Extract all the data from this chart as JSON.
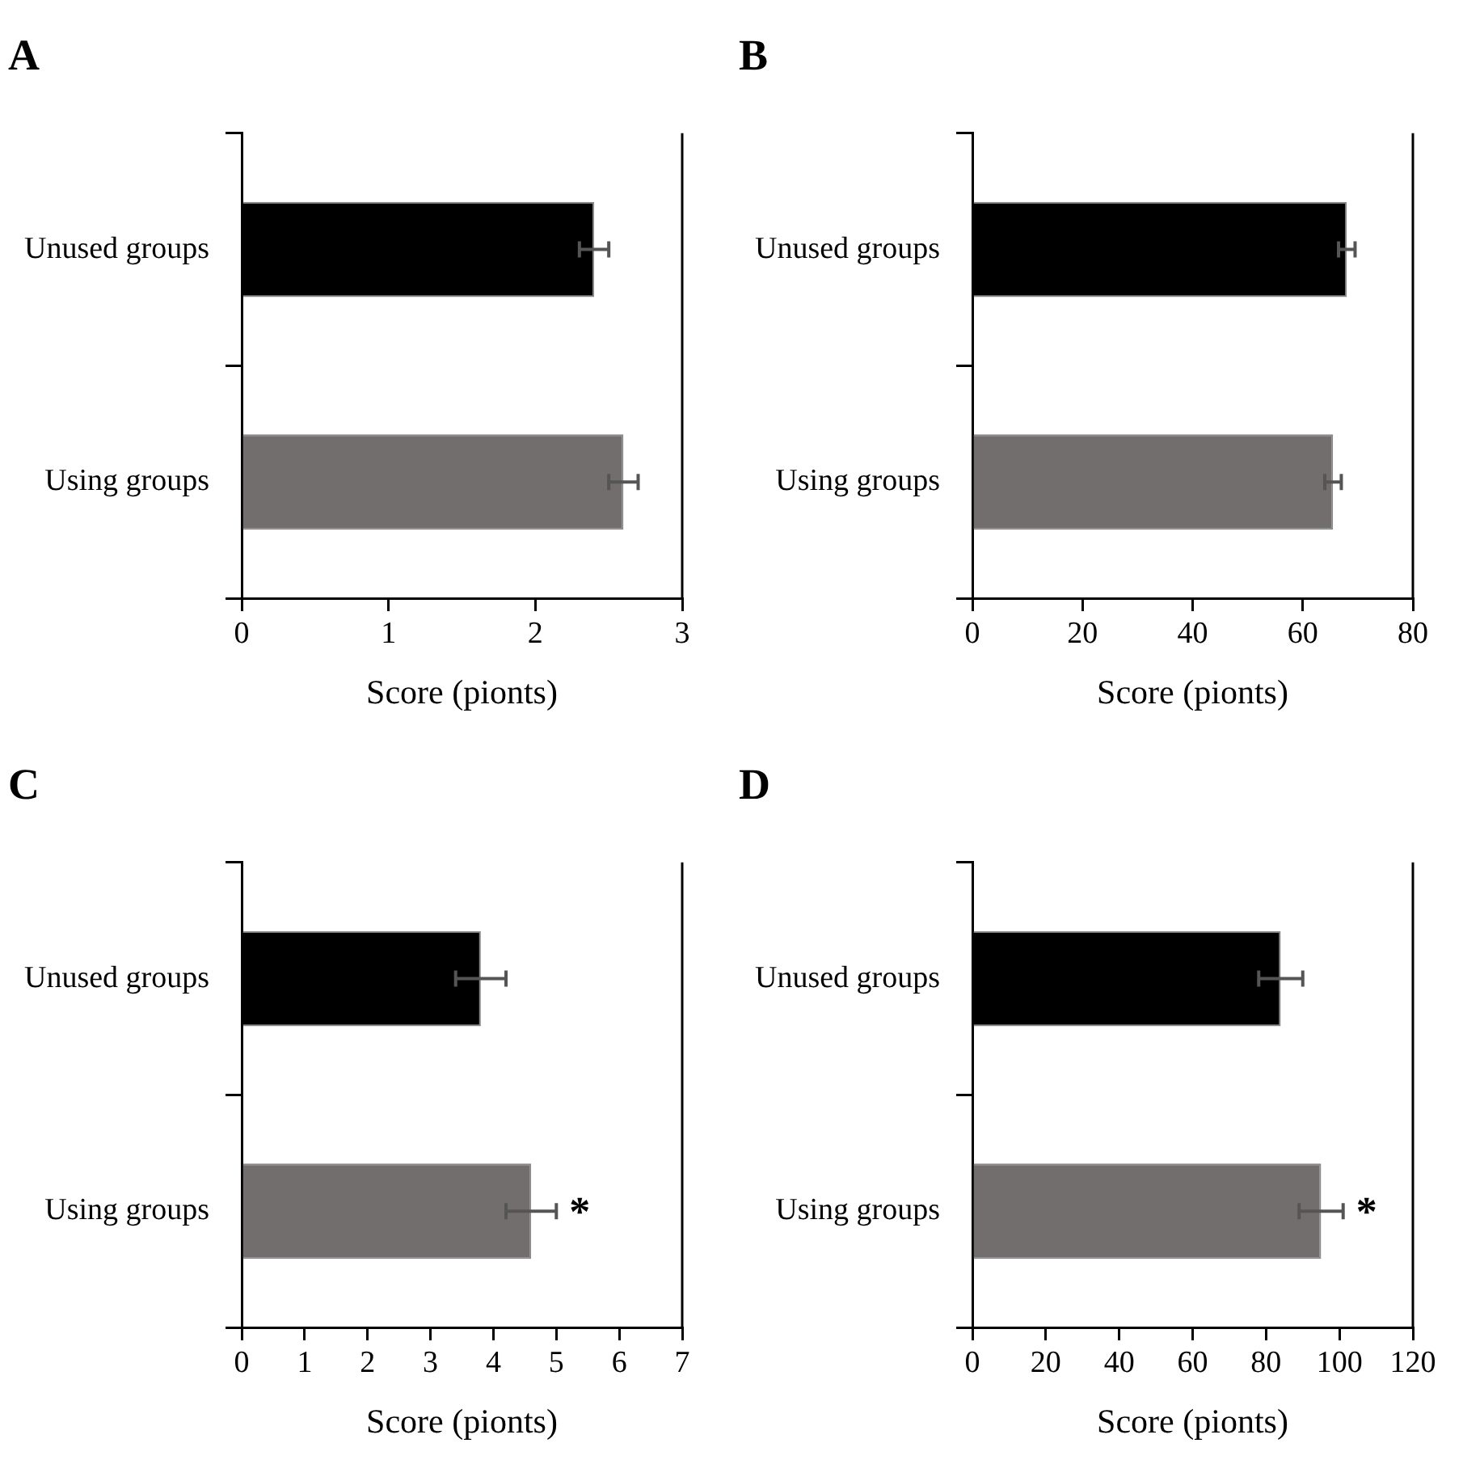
{
  "chart_data": [
    {
      "type": "bar",
      "orientation": "horizontal",
      "title": "A",
      "xlabel": "Score (pionts)",
      "categories": [
        "Unused groups",
        "Using groups"
      ],
      "values": [
        2.4,
        2.6
      ],
      "errors": [
        0.1,
        0.1
      ],
      "colors": [
        "#000000",
        "#736e6e"
      ],
      "xlim": [
        0,
        3
      ],
      "xticks": [
        0,
        1,
        2,
        3
      ],
      "grid": false,
      "legend": false
    },
    {
      "type": "bar",
      "orientation": "horizontal",
      "title": "B",
      "xlabel": "Score (pionts)",
      "categories": [
        "Unused groups",
        "Using groups"
      ],
      "values": [
        68,
        65.5
      ],
      "errors": [
        1.5,
        1.5
      ],
      "colors": [
        "#000000",
        "#736e6e"
      ],
      "xlim": [
        0,
        80
      ],
      "xticks": [
        0,
        20,
        40,
        60,
        80
      ],
      "grid": false,
      "legend": false
    },
    {
      "type": "bar",
      "orientation": "horizontal",
      "title": "C",
      "xlabel": "Score (pionts)",
      "categories": [
        "Unused groups",
        "Using groups"
      ],
      "values": [
        3.8,
        4.6
      ],
      "errors": [
        0.4,
        0.4
      ],
      "colors": [
        "#000000",
        "#736e6e"
      ],
      "xlim": [
        0,
        7
      ],
      "xticks": [
        0,
        1,
        2,
        3,
        4,
        5,
        6,
        7
      ],
      "grid": false,
      "legend": false,
      "annotations": [
        {
          "text": "*",
          "x": 5.0,
          "y": "Using groups"
        }
      ]
    },
    {
      "type": "bar",
      "orientation": "horizontal",
      "title": "D",
      "xlabel": "Score (pionts)",
      "categories": [
        "Unused groups",
        "Using groups"
      ],
      "values": [
        84,
        95
      ],
      "errors": [
        6,
        6
      ],
      "colors": [
        "#000000",
        "#736e6e"
      ],
      "xlim": [
        0,
        120
      ],
      "xticks": [
        0,
        20,
        40,
        60,
        80,
        100,
        120
      ],
      "grid": false,
      "legend": false,
      "annotations": [
        {
          "text": "*",
          "x": 101,
          "y": "Using groups"
        }
      ]
    }
  ]
}
